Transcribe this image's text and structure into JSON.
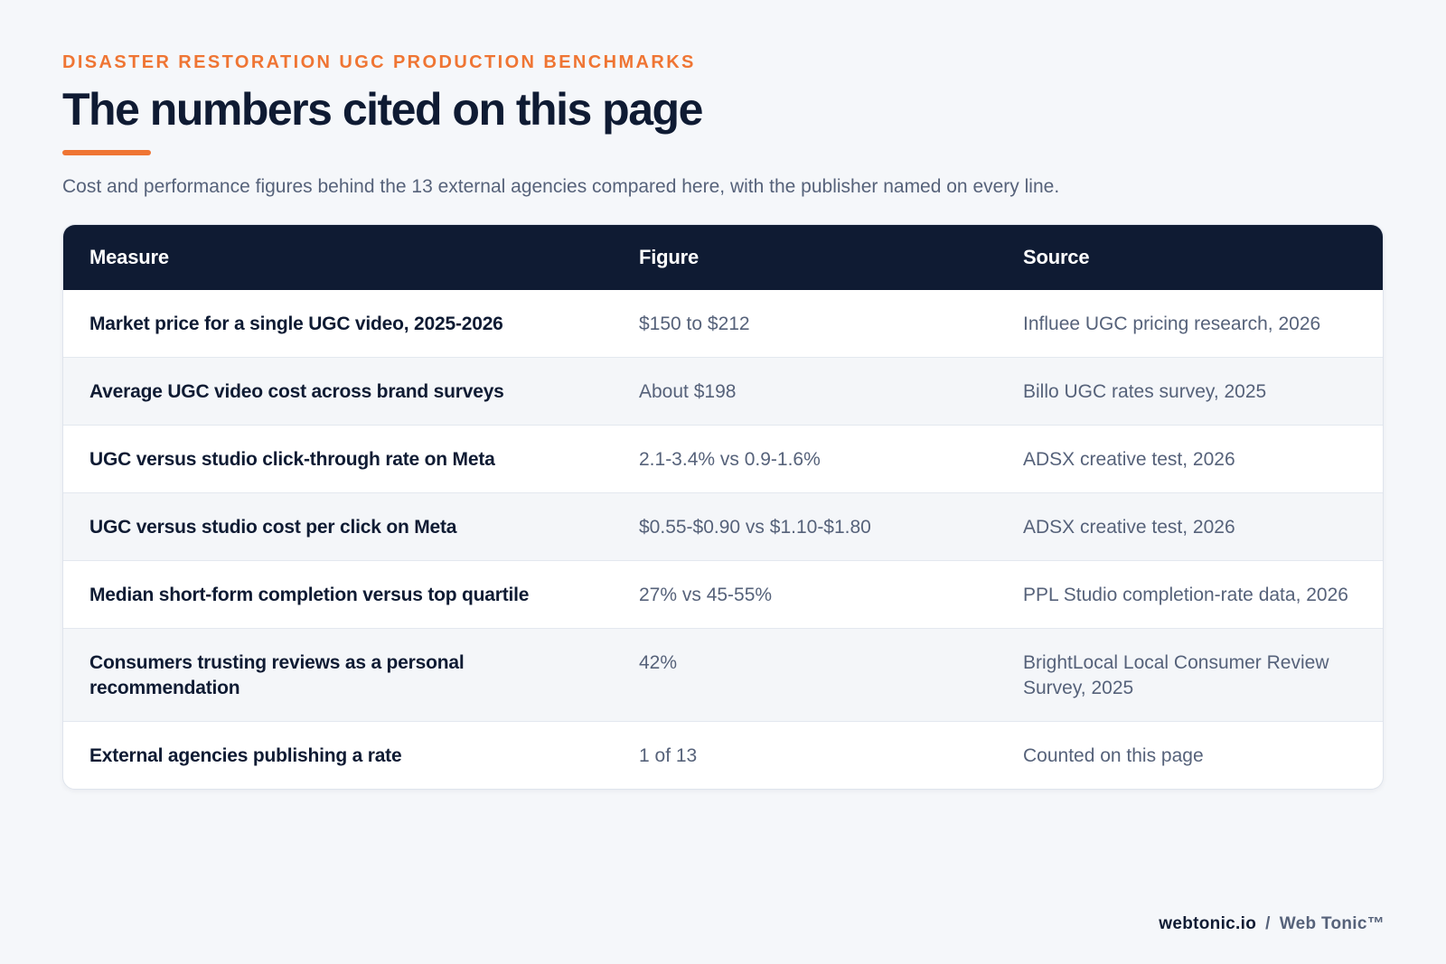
{
  "header": {
    "eyebrow": "DISASTER RESTORATION UGC PRODUCTION BENCHMARKS",
    "title": "The numbers cited on this page",
    "subtitle": "Cost and performance figures behind the 13 external agencies compared here, with the publisher named on every line."
  },
  "table": {
    "columns": [
      "Measure",
      "Figure",
      "Source"
    ],
    "rows": [
      {
        "measure": "Market price for a single UGC video, 2025-2026",
        "figure": "$150 to $212",
        "source": "Influee UGC pricing research, 2026"
      },
      {
        "measure": "Average UGC video cost across brand surveys",
        "figure": "About $198",
        "source": "Billo UGC rates survey, 2025"
      },
      {
        "measure": "UGC versus studio click-through rate on Meta",
        "figure": "2.1-3.4% vs 0.9-1.6%",
        "source": "ADSX creative test, 2026"
      },
      {
        "measure": "UGC versus studio cost per click on Meta",
        "figure": "$0.55-$0.90 vs $1.10-$1.80",
        "source": "ADSX creative test, 2026"
      },
      {
        "measure": "Median short-form completion versus top quartile",
        "figure": "27% vs 45-55%",
        "source": "PPL Studio completion-rate data, 2026"
      },
      {
        "measure": "Consumers trusting reviews as a personal recommendation",
        "figure": "42%",
        "source": "BrightLocal Local Consumer Review Survey, 2025"
      },
      {
        "measure": "External agencies publishing a rate",
        "figure": "1 of 13",
        "source": "Counted on this page"
      }
    ]
  },
  "footer": {
    "domain": "webtonic.io",
    "separator": "/",
    "brand": "Web Tonic™"
  },
  "colors": {
    "accent": "#ef7533",
    "navy": "#0f1b33",
    "muted": "#56627a",
    "background": "#f5f7fa"
  }
}
